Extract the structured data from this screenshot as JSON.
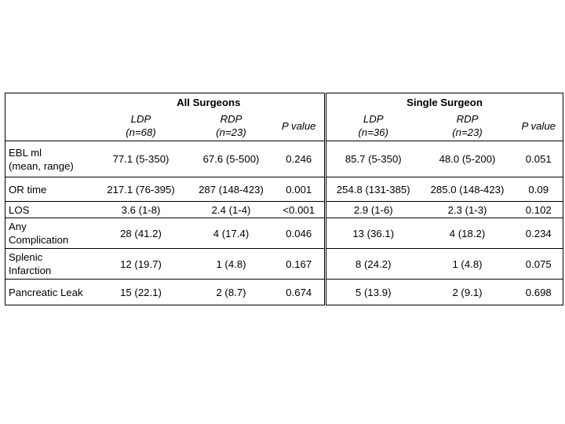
{
  "header": {
    "group_all": "All Surgeons",
    "group_single": "Single Surgeon",
    "cols": [
      {
        "line1": "LDP",
        "line2": "(n=68)"
      },
      {
        "line1": "RDP",
        "line2": "(n=23)"
      },
      {
        "line1": "P value",
        "line2": ""
      },
      {
        "line1": "LDP",
        "line2": "(n=36)"
      },
      {
        "line1": "RDP",
        "line2": "(n=23)"
      },
      {
        "line1": "P value",
        "line2": ""
      }
    ]
  },
  "rows": [
    {
      "label_line1": "EBL ml",
      "label_line2": "(mean, range)",
      "values": [
        "77.1 (5-350)",
        "67.6 (5-500)",
        "0.246",
        "85.7 (5-350)",
        "48.0 (5-200)",
        "0.051"
      ]
    },
    {
      "label_line1": "OR time",
      "label_line2": "",
      "values": [
        "217.1 (76-395)",
        "287 (148-423)",
        "0.001",
        "254.8 (131-385)",
        "285.0 (148-423)",
        "0.09"
      ]
    },
    {
      "label_line1": "LOS",
      "label_line2": "",
      "values": [
        "3.6 (1-8)",
        "2.4 (1-4)",
        "<0.001",
        "2.9 (1-6)",
        "2.3 (1-3)",
        "0.102"
      ]
    },
    {
      "label_line1": "Any",
      "label_line2": "Complication",
      "values": [
        "28 (41.2)",
        "4 (17.4)",
        "0.046",
        "13 (36.1)",
        "4 (18.2)",
        "0.234"
      ]
    },
    {
      "label_line1": "Splenic",
      "label_line2": "Infarction",
      "values": [
        "12 (19.7)",
        "1 (4.8)",
        "0.167",
        "8 (24.2)",
        "1 (4.8)",
        "0.075"
      ]
    },
    {
      "label_line1": "Pancreatic Leak",
      "label_line2": "",
      "values": [
        "15 (22.1)",
        "2 (8.7)",
        "0.674",
        "5 (13.9)",
        "2 (9.1)",
        "0.698"
      ]
    }
  ]
}
